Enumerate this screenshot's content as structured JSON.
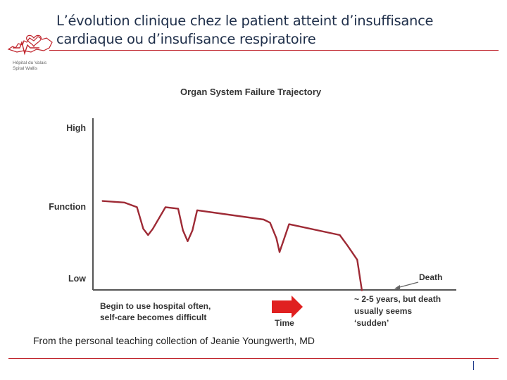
{
  "slide": {
    "title_line1": "L’évolution clinique chez le patient atteint d’insuffisance",
    "title_line2": "cardiaque ou d’insufisance respiratoire",
    "credit": "From the personal teaching collection of Jeanie Youngwerth, MD",
    "accent_color": "#c0242c",
    "title_color": "#1f2f4a"
  },
  "logo": {
    "icon": "hospital-heart-logo",
    "line1": "Hôpital du Valais",
    "line2": "Spital Wallis"
  },
  "chart_data": {
    "type": "line",
    "title": "Organ System Failure Trajectory",
    "ylabel_ticks": [
      "High",
      "Function",
      "Low"
    ],
    "xlabel": "Time",
    "ylim": [
      0,
      100
    ],
    "x_range": [
      0,
      100
    ],
    "series": [
      {
        "x": [
          0,
          7,
          11,
          13,
          14.5,
          16,
          20,
          24,
          25.5,
          27,
          28.5,
          30,
          51,
          53,
          55,
          56,
          57.5,
          59,
          75,
          77.5,
          80.5,
          82
        ],
        "y": [
          52,
          51,
          48,
          34,
          30,
          34,
          48,
          47,
          33,
          26,
          33,
          46,
          40,
          38,
          28,
          19,
          28,
          37,
          30,
          23,
          14,
          -6
        ]
      }
    ],
    "annotations": {
      "left_note_line1": "Begin to use hospital often,",
      "left_note_line2": "self-care becomes difficult",
      "death_label": "Death",
      "right_note_line1": "~ 2-5 years, but death",
      "right_note_line2": "usually seems",
      "right_note_line3": "‘sudden’"
    },
    "colors": {
      "line": "#9e2a35",
      "axis": "#555555",
      "arrow": "#e02020",
      "label": "#333333"
    }
  }
}
